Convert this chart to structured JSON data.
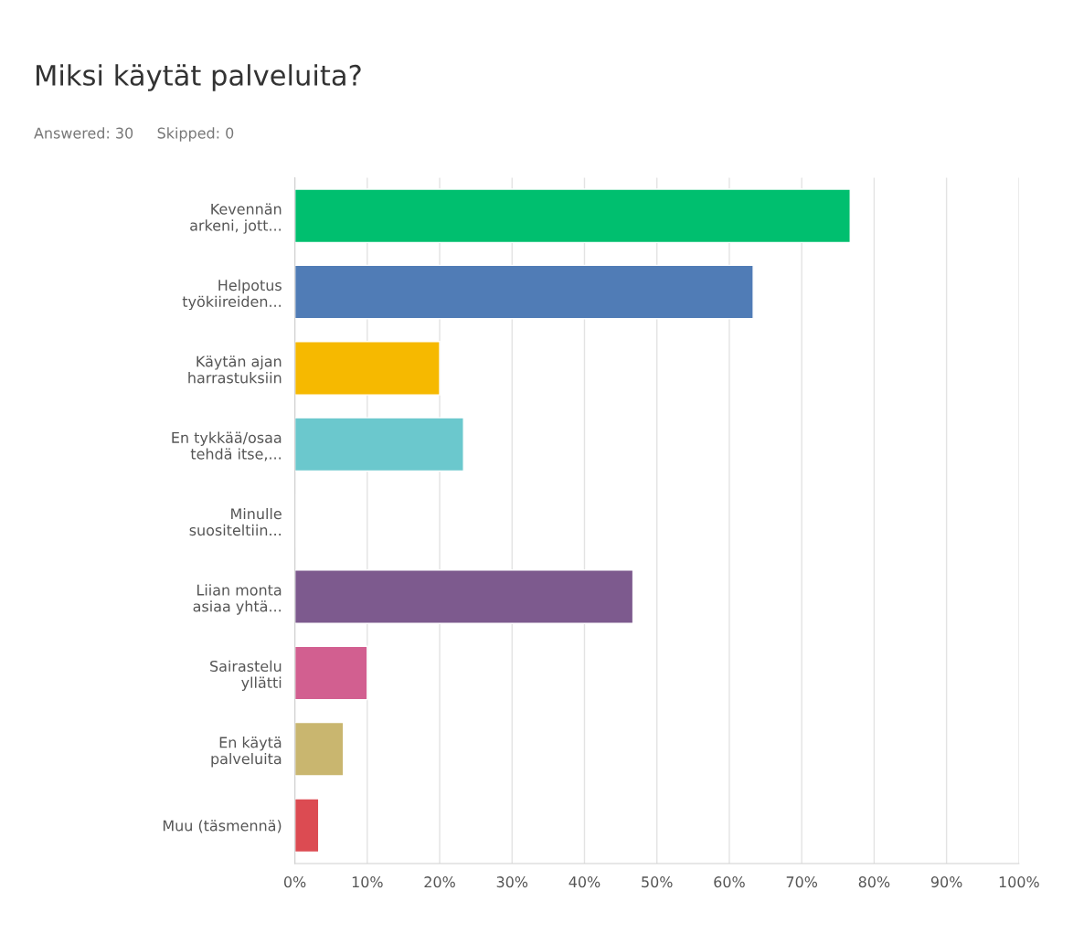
{
  "chart_data": {
    "type": "bar",
    "orientation": "horizontal",
    "title": "Miksi käytät palveluita?",
    "subtitle": "Answered: 30     Skipped: 0",
    "categories": [
      "Kevennän\narkeni, jott...",
      "Helpotus\ntyökiireiden...",
      "Käytän ajan\nharrastuksiin",
      "En tykkää/osaa\ntehdä itse,...",
      "Minulle\nsuositeltiin...",
      "Liian monta\nasiaa yhtä...",
      "Sairastelu\nyllätti",
      "En käytä\npalveluita",
      "Muu (täsmennä)"
    ],
    "values": [
      76.7,
      63.3,
      20,
      23.3,
      0,
      46.7,
      10,
      6.7,
      3.3
    ],
    "colors": [
      "#00bf6f",
      "#507cb6",
      "#f6b900",
      "#6bc8cd",
      null,
      "#7d5a8e",
      "#d25f90",
      "#c9b66f",
      "#dc4b52"
    ],
    "xlim": [
      0,
      100
    ],
    "xticks": [
      {
        "value": 0,
        "label": "0%"
      },
      {
        "value": 10,
        "label": "10%"
      },
      {
        "value": 20,
        "label": "20%"
      },
      {
        "value": 30,
        "label": "30%"
      },
      {
        "value": 40,
        "label": "40%"
      },
      {
        "value": 50,
        "label": "50%"
      },
      {
        "value": 60,
        "label": "60%"
      },
      {
        "value": 70,
        "label": "70%"
      },
      {
        "value": 80,
        "label": "80%"
      },
      {
        "value": 90,
        "label": "90%"
      },
      {
        "value": 100,
        "label": "100%"
      }
    ],
    "grid": "x"
  }
}
